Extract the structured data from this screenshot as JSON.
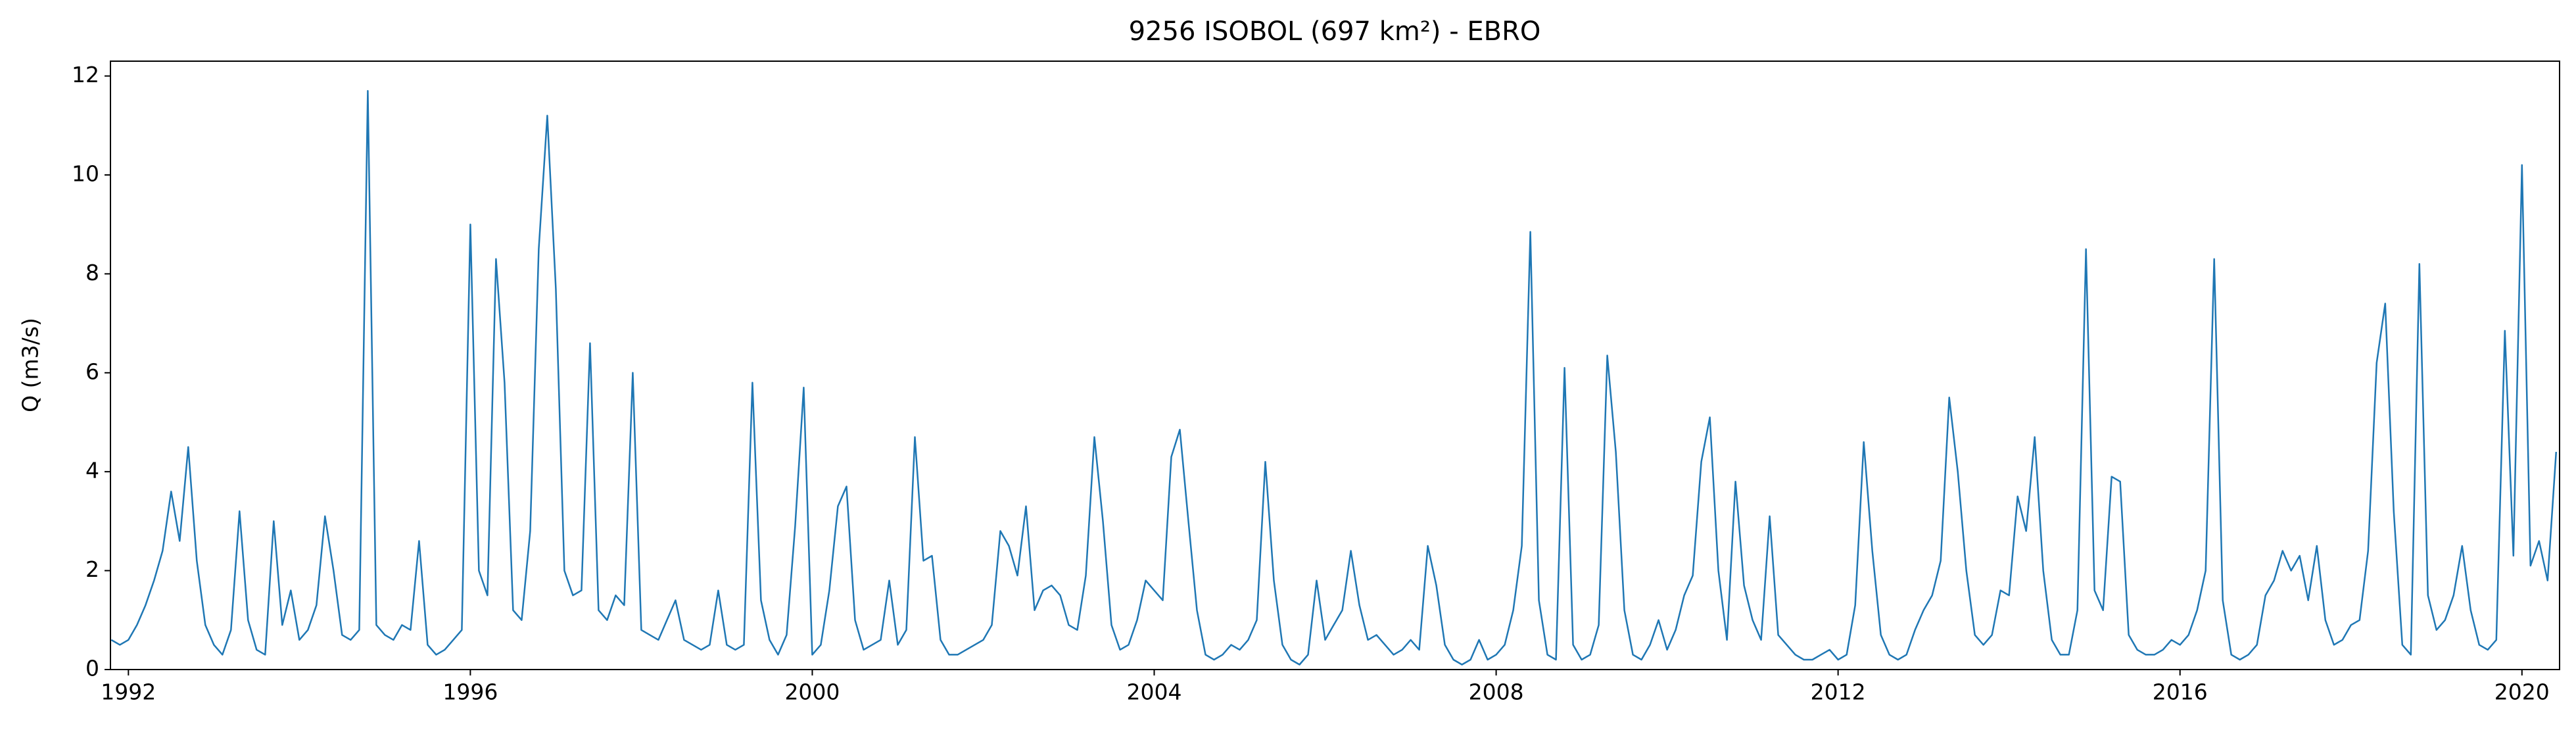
{
  "chart_data": {
    "type": "line",
    "title": "9256 ISOBOL (697 km²) - EBRO",
    "y_label": "Q (m3/s)",
    "color": "#1f77b4",
    "xlim": [
      1991.79,
      2020.44
    ],
    "xticks": [
      1992,
      1996,
      2000,
      2004,
      2008,
      2012,
      2016,
      2020
    ],
    "ylim": [
      0,
      12.3
    ],
    "yticks": [
      0,
      2,
      4,
      6,
      8,
      10,
      12
    ],
    "x": [
      1991.8,
      1991.9,
      1992.0,
      1992.1,
      1992.2,
      1992.3,
      1992.4,
      1992.5,
      1992.6,
      1992.7,
      1992.8,
      1992.9,
      1993.0,
      1993.1,
      1993.2,
      1993.3,
      1993.4,
      1993.5,
      1993.6,
      1993.7,
      1993.8,
      1993.9,
      1994.0,
      1994.1,
      1994.2,
      1994.3,
      1994.4,
      1994.5,
      1994.6,
      1994.7,
      1994.8,
      1994.9,
      1995.0,
      1995.1,
      1995.2,
      1995.3,
      1995.4,
      1995.5,
      1995.6,
      1995.7,
      1995.8,
      1995.9,
      1996.0,
      1996.1,
      1996.2,
      1996.3,
      1996.4,
      1996.5,
      1996.6,
      1996.7,
      1996.8,
      1996.9,
      1997.0,
      1997.1,
      1997.2,
      1997.3,
      1997.4,
      1997.5,
      1997.6,
      1997.7,
      1997.8,
      1997.9,
      1998.0,
      1998.1,
      1998.2,
      1998.3,
      1998.4,
      1998.5,
      1998.6,
      1998.7,
      1998.8,
      1998.9,
      1999.0,
      1999.1,
      1999.2,
      1999.3,
      1999.4,
      1999.5,
      1999.6,
      1999.7,
      1999.8,
      1999.9,
      2000.0,
      2000.1,
      2000.2,
      2000.3,
      2000.4,
      2000.5,
      2000.6,
      2000.7,
      2000.8,
      2000.9,
      2001.0,
      2001.1,
      2001.2,
      2001.3,
      2001.4,
      2001.5,
      2001.6,
      2001.7,
      2001.8,
      2001.9,
      2002.0,
      2002.1,
      2002.2,
      2002.3,
      2002.4,
      2002.5,
      2002.6,
      2002.7,
      2002.8,
      2002.9,
      2003.0,
      2003.1,
      2003.2,
      2003.3,
      2003.4,
      2003.5,
      2003.6,
      2003.7,
      2003.8,
      2003.9,
      2004.0,
      2004.1,
      2004.2,
      2004.3,
      2004.4,
      2004.5,
      2004.6,
      2004.7,
      2004.8,
      2004.9,
      2005.0,
      2005.1,
      2005.2,
      2005.3,
      2005.4,
      2005.5,
      2005.6,
      2005.7,
      2005.8,
      2005.9,
      2006.0,
      2006.1,
      2006.2,
      2006.3,
      2006.4,
      2006.5,
      2006.6,
      2006.7,
      2006.8,
      2006.9,
      2007.0,
      2007.1,
      2007.2,
      2007.3,
      2007.4,
      2007.5,
      2007.6,
      2007.7,
      2007.8,
      2007.9,
      2008.0,
      2008.1,
      2008.2,
      2008.3,
      2008.4,
      2008.5,
      2008.6,
      2008.7,
      2008.8,
      2008.9,
      2009.0,
      2009.1,
      2009.2,
      2009.3,
      2009.4,
      2009.5,
      2009.6,
      2009.7,
      2009.8,
      2009.9,
      2010.0,
      2010.1,
      2010.2,
      2010.3,
      2010.4,
      2010.5,
      2010.6,
      2010.7,
      2010.8,
      2010.9,
      2011.0,
      2011.1,
      2011.2,
      2011.3,
      2011.4,
      2011.5,
      2011.6,
      2011.7,
      2011.8,
      2011.9,
      2012.0,
      2012.1,
      2012.2,
      2012.3,
      2012.4,
      2012.5,
      2012.6,
      2012.7,
      2012.8,
      2012.9,
      2013.0,
      2013.1,
      2013.2,
      2013.3,
      2013.4,
      2013.5,
      2013.6,
      2013.7,
      2013.8,
      2013.9,
      2014.0,
      2014.1,
      2014.2,
      2014.3,
      2014.4,
      2014.5,
      2014.6,
      2014.7,
      2014.8,
      2014.9,
      2015.0,
      2015.1,
      2015.2,
      2015.3,
      2015.4,
      2015.5,
      2015.6,
      2015.7,
      2015.8,
      2015.9,
      2016.0,
      2016.1,
      2016.2,
      2016.3,
      2016.4,
      2016.5,
      2016.6,
      2016.7,
      2016.8,
      2016.9,
      2017.0,
      2017.1,
      2017.2,
      2017.3,
      2017.4,
      2017.5,
      2017.6,
      2017.7,
      2017.8,
      2017.9,
      2018.0,
      2018.1,
      2018.2,
      2018.3,
      2018.4,
      2018.5,
      2018.6,
      2018.7,
      2018.8,
      2018.9,
      2019.0,
      2019.1,
      2019.2,
      2019.3,
      2019.4,
      2019.5,
      2019.6,
      2019.7,
      2019.8,
      2019.9,
      2020.0,
      2020.1,
      2020.2,
      2020.3,
      2020.4
    ],
    "values": [
      0.6,
      0.5,
      0.6,
      0.9,
      1.3,
      1.8,
      2.4,
      3.6,
      2.6,
      4.5,
      2.2,
      0.9,
      0.5,
      0.3,
      0.8,
      3.2,
      1.0,
      0.4,
      0.3,
      3.0,
      0.9,
      1.6,
      0.6,
      0.8,
      1.3,
      3.1,
      2.0,
      0.7,
      0.6,
      0.8,
      11.7,
      0.9,
      0.7,
      0.6,
      0.9,
      0.8,
      2.6,
      0.5,
      0.3,
      0.4,
      0.6,
      0.8,
      9.0,
      2.0,
      1.5,
      8.3,
      5.8,
      1.2,
      1.0,
      2.8,
      8.5,
      11.2,
      7.7,
      2.0,
      1.5,
      1.6,
      6.6,
      1.2,
      1.0,
      1.5,
      1.3,
      6.0,
      0.8,
      0.7,
      0.6,
      1.0,
      1.4,
      0.6,
      0.5,
      0.4,
      0.5,
      1.6,
      0.5,
      0.4,
      0.5,
      5.8,
      1.4,
      0.6,
      0.3,
      0.7,
      2.9,
      5.7,
      0.3,
      0.5,
      1.6,
      3.3,
      3.7,
      1.0,
      0.4,
      0.5,
      0.6,
      1.8,
      0.5,
      0.8,
      4.7,
      2.2,
      2.3,
      0.6,
      0.3,
      0.3,
      0.4,
      0.5,
      0.6,
      0.9,
      2.8,
      2.5,
      1.9,
      3.3,
      1.2,
      1.6,
      1.7,
      1.5,
      0.9,
      0.8,
      1.9,
      4.7,
      3.0,
      0.9,
      0.4,
      0.5,
      1.0,
      1.8,
      1.6,
      1.4,
      4.3,
      4.85,
      3.0,
      1.2,
      0.3,
      0.2,
      0.3,
      0.5,
      0.4,
      0.6,
      1.0,
      4.2,
      1.8,
      0.5,
      0.2,
      0.1,
      0.3,
      1.8,
      0.6,
      0.9,
      1.2,
      2.4,
      1.3,
      0.6,
      0.7,
      0.5,
      0.3,
      0.4,
      0.6,
      0.4,
      2.5,
      1.7,
      0.5,
      0.2,
      0.1,
      0.2,
      0.6,
      0.2,
      0.3,
      0.5,
      1.2,
      2.5,
      8.85,
      1.4,
      0.3,
      0.2,
      6.1,
      0.5,
      0.2,
      0.3,
      0.9,
      6.35,
      4.4,
      1.2,
      0.3,
      0.2,
      0.5,
      1.0,
      0.4,
      0.8,
      1.5,
      1.9,
      4.2,
      5.1,
      2.0,
      0.6,
      3.8,
      1.7,
      1.0,
      0.6,
      3.1,
      0.7,
      0.5,
      0.3,
      0.2,
      0.2,
      0.3,
      0.4,
      0.2,
      0.3,
      1.3,
      4.6,
      2.4,
      0.7,
      0.3,
      0.2,
      0.3,
      0.8,
      1.2,
      1.5,
      2.2,
      5.5,
      4.0,
      2.0,
      0.7,
      0.5,
      0.7,
      1.6,
      1.5,
      3.5,
      2.8,
      4.7,
      2.0,
      0.6,
      0.3,
      0.3,
      1.2,
      8.5,
      1.6,
      1.2,
      3.9,
      3.8,
      0.7,
      0.4,
      0.3,
      0.3,
      0.4,
      0.6,
      0.5,
      0.7,
      1.2,
      2.0,
      8.3,
      1.4,
      0.3,
      0.2,
      0.3,
      0.5,
      1.5,
      1.8,
      2.4,
      2.0,
      2.3,
      1.4,
      2.5,
      1.0,
      0.5,
      0.6,
      0.9,
      1.0,
      2.4,
      6.2,
      7.4,
      3.2,
      0.5,
      0.3,
      8.2,
      1.5,
      0.8,
      1.0,
      1.5,
      2.5,
      1.2,
      0.5,
      0.4,
      0.6,
      6.85,
      2.3,
      10.2,
      2.1,
      2.6,
      1.8,
      4.4
    ]
  }
}
